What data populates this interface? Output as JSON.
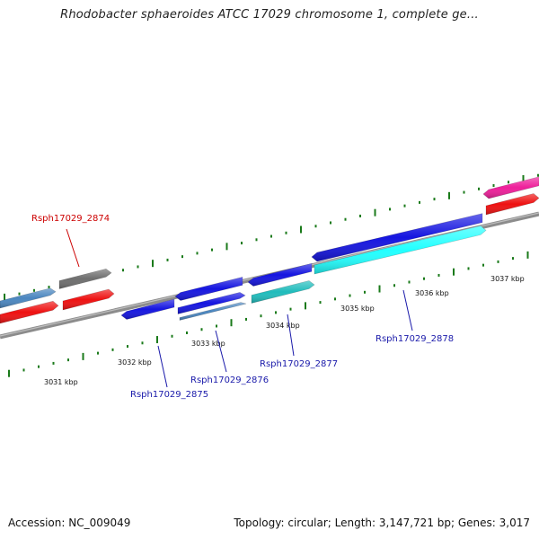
{
  "title": "Rhodobacter sphaeroides ATCC 17029 chromosome 1, complete ge...",
  "footer": {
    "accession": "Accession: NC_009049",
    "summary": "Topology: circular; Length: 3,147,721 bp; Genes: 3,017"
  },
  "colors": {
    "backbone": "#8c8c8c",
    "tick": "#1a7a1a",
    "gene_label_red": "#cc0000",
    "gene_label_blue": "#1a1aaa"
  },
  "scale_labels": [
    "3031 kbp",
    "3032 kbp",
    "3033 kbp",
    "3034 kbp",
    "3035 kbp",
    "3036 kbp",
    "3037 kbp"
  ],
  "gene_labels": [
    {
      "text": "Rsph17029_2874",
      "color": "#cc0000"
    },
    {
      "text": "Rsph17029_2875",
      "color": "#1a1aaa"
    },
    {
      "text": "Rsph17029_2876",
      "color": "#1a1aaa"
    },
    {
      "text": "Rsph17029_2877",
      "color": "#1a1aaa"
    },
    {
      "text": "Rsph17029_2878",
      "color": "#1a1aaa"
    }
  ],
  "features": [
    {
      "name": "steelblue-gene-left",
      "color": "#4a86c0"
    },
    {
      "name": "gray-gene-2874",
      "color": "#6e6e6e"
    },
    {
      "name": "red-gene-left",
      "color": "#ee1111"
    },
    {
      "name": "red-gene-mid",
      "color": "#ee1111"
    },
    {
      "name": "blue-gene-2875",
      "color": "#1515e0"
    },
    {
      "name": "blue-gene-2876a",
      "color": "#1515e0"
    },
    {
      "name": "blue-gene-2876b",
      "color": "#1515e0"
    },
    {
      "name": "steelblue-gene-2876",
      "color": "#4a86c0"
    },
    {
      "name": "blue-gene-2877",
      "color": "#1515e0"
    },
    {
      "name": "teal-gene-2877",
      "color": "#1fbcbc"
    },
    {
      "name": "blue-gene-long",
      "color": "#1515e0"
    },
    {
      "name": "cyan-gene-2878",
      "color": "#22ffff"
    },
    {
      "name": "pink-gene-right",
      "color": "#ee1f9a"
    },
    {
      "name": "red-gene-right",
      "color": "#ee1111"
    }
  ]
}
